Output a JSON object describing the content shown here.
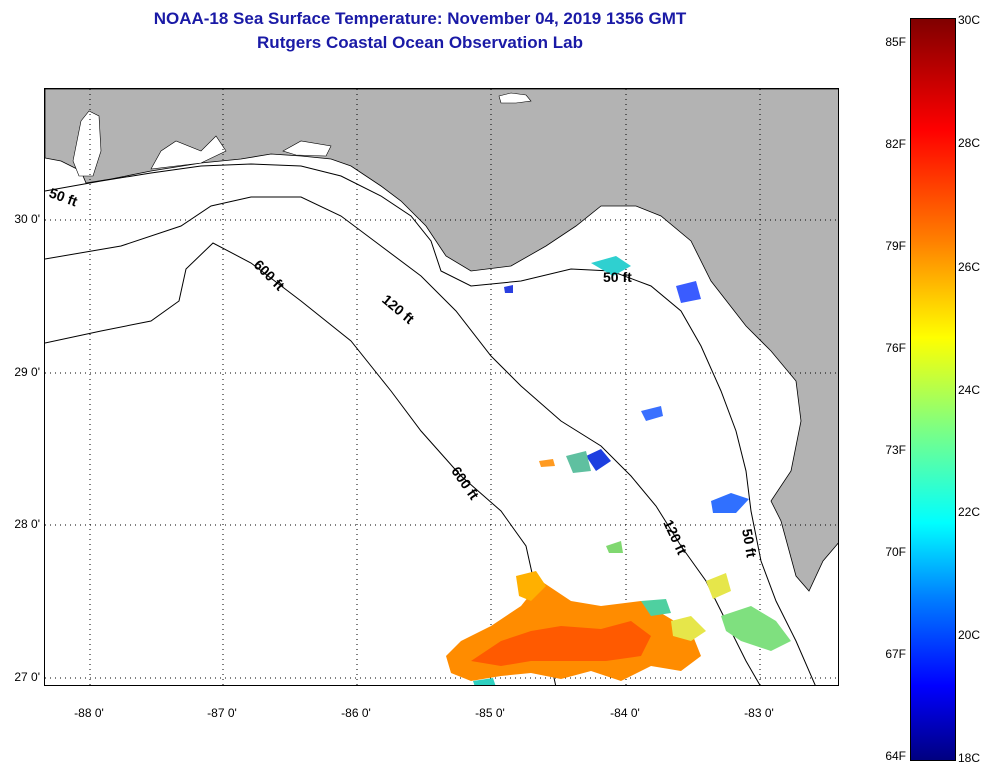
{
  "title": {
    "line1": "NOAA-18 Sea Surface Temperature:  November 04, 2019 1356 GMT",
    "line2": "Rutgers Coastal Ocean Observation Lab"
  },
  "map": {
    "lat_labels": [
      "30 0'",
      "29 0'",
      "28 0'",
      "27 0'"
    ],
    "lon_labels": [
      "-88 0'",
      "-87 0'",
      "-86 0'",
      "-85 0'",
      "-84 0'",
      "-83 0'"
    ],
    "contours": [
      "50 ft",
      "600 ft",
      "120 ft",
      "50 ft",
      "600 ft",
      "120 ft",
      "50 ft"
    ],
    "colors": {
      "land": "#b3b3b3",
      "ocean": "#ffffff",
      "grid": "#000000"
    }
  },
  "colorbar": {
    "fahrenheit_labels": [
      "85F",
      "82F",
      "79F",
      "76F",
      "73F",
      "70F",
      "67F",
      "64F"
    ],
    "celsius_labels": [
      "30C",
      "28C",
      "26C",
      "24C",
      "22C",
      "20C",
      "18C"
    ]
  }
}
